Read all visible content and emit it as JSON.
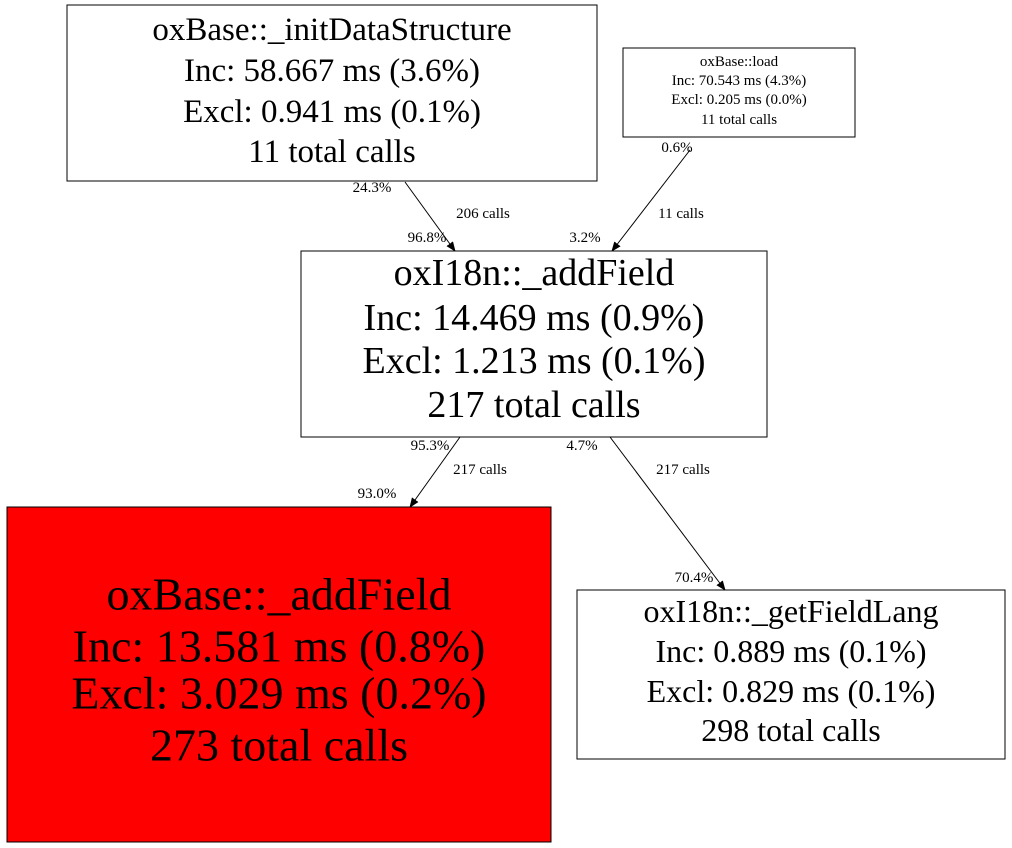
{
  "nodes": [
    {
      "name": "oxBase::_initDataStructure",
      "inc": "Inc: 58.667 ms (3.6%)",
      "excl": "Excl: 0.941 ms (0.1%)",
      "calls": "11 total calls"
    },
    {
      "name": "oxBase::load",
      "inc": "Inc: 70.543 ms (4.3%)",
      "excl": "Excl: 0.205 ms (0.0%)",
      "calls": "11 total calls"
    },
    {
      "name": "oxI18n::_addField",
      "inc": "Inc: 14.469 ms (0.9%)",
      "excl": "Excl: 1.213 ms (0.1%)",
      "calls": "217 total calls"
    },
    {
      "name": "oxBase::_addField",
      "inc": "Inc: 13.581 ms (0.8%)",
      "excl": "Excl: 3.029 ms (0.2%)",
      "calls": "273 total calls"
    },
    {
      "name": "oxI18n::_getFieldLang",
      "inc": "Inc: 0.889 ms (0.1%)",
      "excl": "Excl: 0.829 ms (0.1%)",
      "calls": "298 total calls"
    }
  ],
  "edges": [
    {
      "tail_label": "24.3%",
      "label": "206 calls",
      "head_label": "96.8%"
    },
    {
      "tail_label": "0.6%",
      "label": "11 calls",
      "head_label": "3.2%"
    },
    {
      "tail_label": "95.3%",
      "label": "217 calls",
      "head_label": "93.0%"
    },
    {
      "tail_label": "4.7%",
      "label": "217 calls",
      "head_label": "70.4%"
    }
  ]
}
